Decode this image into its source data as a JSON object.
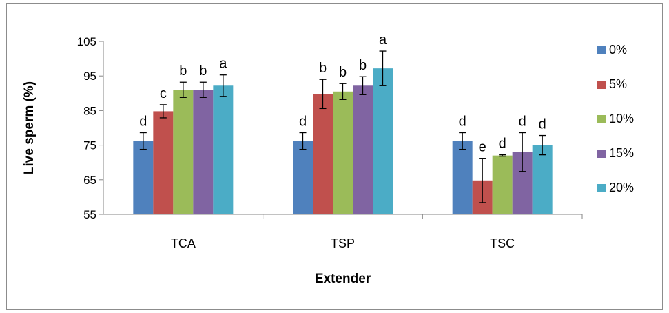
{
  "chart_data": {
    "type": "bar",
    "title": "",
    "xlabel": "Extender",
    "ylabel": "Live sperm (%)",
    "ylim": [
      55,
      105
    ],
    "yticks": [
      55,
      65,
      75,
      85,
      95,
      105
    ],
    "grid": false,
    "legend_position": "right",
    "categories": [
      "TCA",
      "TSP",
      "TSC"
    ],
    "series": [
      {
        "name": "0%",
        "color": "#4F81BD",
        "values": [
          76.2,
          76.2,
          76.2
        ],
        "errors": [
          2.4,
          2.4,
          2.4
        ],
        "letters": [
          "d",
          "d",
          "d"
        ]
      },
      {
        "name": "5%",
        "color": "#C0504D",
        "values": [
          84.8,
          89.8,
          64.8
        ],
        "errors": [
          1.9,
          4.2,
          6.4
        ],
        "letters": [
          "c",
          "b",
          "e"
        ]
      },
      {
        "name": "10%",
        "color": "#9BBB59",
        "values": [
          91.0,
          90.5,
          72.0
        ],
        "errors": [
          2.2,
          2.3,
          0.2
        ],
        "letters": [
          "b",
          "b",
          "d"
        ]
      },
      {
        "name": "15%",
        "color": "#8064A2",
        "values": [
          91.0,
          92.2,
          73.0
        ],
        "errors": [
          2.2,
          2.6,
          5.6
        ],
        "letters": [
          "b",
          "b",
          "d"
        ]
      },
      {
        "name": "20%",
        "color": "#4BACC6",
        "values": [
          92.2,
          97.2,
          75.0
        ],
        "errors": [
          3.1,
          5.0,
          2.8
        ],
        "letters": [
          "a",
          "a",
          "d"
        ]
      }
    ]
  }
}
